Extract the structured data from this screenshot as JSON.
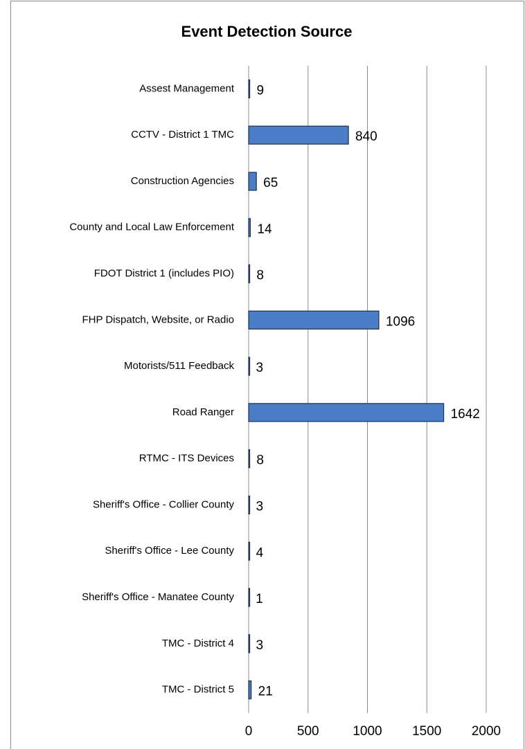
{
  "chart_data": {
    "type": "bar",
    "orientation": "horizontal",
    "title": "Event Detection Source",
    "categories": [
      "Assest Management",
      "CCTV - District 1 TMC",
      "Construction Agencies",
      "County and Local Law Enforcement",
      "FDOT District 1 (includes PIO)",
      "FHP Dispatch, Website, or Radio",
      "Motorists/511 Feedback",
      "Road Ranger",
      "RTMC - ITS Devices",
      "Sheriff's Office - Collier County",
      "Sheriff's Office - Lee County",
      "Sheriff's Office - Manatee County",
      "TMC - District 4",
      "TMC - District 5"
    ],
    "values": [
      9,
      840,
      65,
      14,
      8,
      1096,
      3,
      1642,
      8,
      3,
      4,
      1,
      3,
      21
    ],
    "color": "#4a7ec8",
    "xlim": [
      0,
      2000
    ],
    "xticks": [
      0,
      500,
      1000,
      1500,
      2000
    ],
    "grid": true
  }
}
